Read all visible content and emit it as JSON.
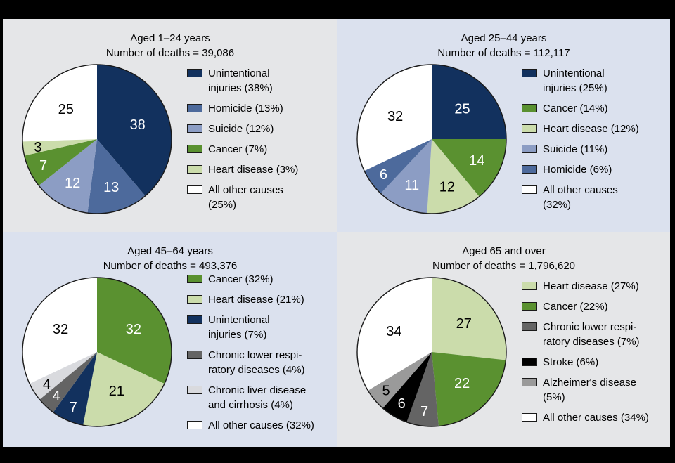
{
  "frame": {
    "border_color": "#000000"
  },
  "palette": {
    "navy": "#12315e",
    "medium_blue": "#4d6a9c",
    "periwinkle": "#8c9dc4",
    "green": "#5a9130",
    "light_green": "#cbdcab",
    "white": "#ffffff",
    "dark_gray": "#646464",
    "light_gray": "#d9dade",
    "medium_gray": "#9a9a9a",
    "black": "#000000",
    "panel_gray": "#e5e6e8",
    "panel_blue": "#dbe1ee",
    "pie_outline": "#1a1a1a",
    "text": "#000000"
  },
  "chart_data": [
    {
      "type": "pie",
      "title": "Aged 1–24 years",
      "subtitle": "Number of deaths = 39,086",
      "panel_background": "gray",
      "legend_position": "right",
      "label_unit": "percent",
      "slices": [
        {
          "label": "Unintentional injuries",
          "pct": 38,
          "value_label": "38",
          "color": "navy",
          "legend_lines": [
            "Unintentional",
            "injuries (38%)"
          ]
        },
        {
          "label": "Homicide",
          "pct": 13,
          "value_label": "13",
          "color": "medium_blue",
          "legend_lines": [
            "Homicide (13%)"
          ]
        },
        {
          "label": "Suicide",
          "pct": 12,
          "value_label": "12",
          "color": "periwinkle",
          "legend_lines": [
            "Suicide (12%)"
          ]
        },
        {
          "label": "Cancer",
          "pct": 7,
          "value_label": "7",
          "color": "green",
          "legend_lines": [
            "Cancer (7%)"
          ]
        },
        {
          "label": "Heart disease",
          "pct": 3,
          "value_label": "3",
          "color": "light_green",
          "legend_lines": [
            "Heart disease (3%)"
          ]
        },
        {
          "label": "All other causes",
          "pct": 25,
          "value_label": "25",
          "color": "white",
          "legend_lines": [
            "All other causes",
            "(25%)"
          ]
        }
      ]
    },
    {
      "type": "pie",
      "title": "Aged 25–44 years",
      "subtitle": "Number of deaths = 112,117",
      "panel_background": "blue",
      "legend_position": "right",
      "label_unit": "percent",
      "slices": [
        {
          "label": "Unintentional injuries",
          "pct": 25,
          "value_label": "25",
          "color": "navy",
          "legend_lines": [
            "Unintentional",
            "injuries (25%)"
          ]
        },
        {
          "label": "Cancer",
          "pct": 14,
          "value_label": "14",
          "color": "green",
          "legend_lines": [
            "Cancer (14%)"
          ]
        },
        {
          "label": "Heart disease",
          "pct": 12,
          "value_label": "12",
          "color": "light_green",
          "legend_lines": [
            "Heart disease (12%)"
          ]
        },
        {
          "label": "Suicide",
          "pct": 11,
          "value_label": "11",
          "color": "periwinkle",
          "legend_lines": [
            "Suicide (11%)"
          ]
        },
        {
          "label": "Homicide",
          "pct": 6,
          "value_label": "6",
          "color": "medium_blue",
          "legend_lines": [
            "Homicide (6%)"
          ]
        },
        {
          "label": "All other causes",
          "pct": 32,
          "value_label": "32",
          "color": "white",
          "legend_lines": [
            "All other causes",
            "(32%)"
          ]
        }
      ]
    },
    {
      "type": "pie",
      "title": "Aged 45–64 years",
      "subtitle": "Number of deaths = 493,376",
      "panel_background": "blue",
      "legend_position": "right",
      "label_unit": "percent",
      "slices": [
        {
          "label": "Cancer",
          "pct": 32,
          "value_label": "32",
          "color": "green",
          "legend_lines": [
            "Cancer (32%)"
          ]
        },
        {
          "label": "Heart disease",
          "pct": 21,
          "value_label": "21",
          "color": "light_green",
          "legend_lines": [
            "Heart disease (21%)"
          ]
        },
        {
          "label": "Unintentional injuries",
          "pct": 7,
          "value_label": "7",
          "color": "navy",
          "legend_lines": [
            "Unintentional",
            "injuries (7%)"
          ]
        },
        {
          "label": "Chronic lower respiratory diseases",
          "pct": 4,
          "value_label": "4",
          "color": "dark_gray",
          "legend_lines": [
            "Chronic lower respi-",
            "ratory diseases (4%)"
          ]
        },
        {
          "label": "Chronic liver disease and cirrhosis",
          "pct": 4,
          "value_label": "4",
          "color": "light_gray",
          "legend_lines": [
            "Chronic liver disease",
            "and cirrhosis (4%)"
          ]
        },
        {
          "label": "All other causes",
          "pct": 32,
          "value_label": "32",
          "color": "white",
          "legend_lines": [
            "All other causes (32%)"
          ]
        }
      ]
    },
    {
      "type": "pie",
      "title": "Aged 65 and over",
      "subtitle": "Number of deaths = 1,796,620",
      "panel_background": "gray",
      "legend_position": "right",
      "label_unit": "percent",
      "slices": [
        {
          "label": "Heart disease",
          "pct": 27,
          "value_label": "27",
          "color": "light_green",
          "legend_lines": [
            "Heart disease (27%)"
          ]
        },
        {
          "label": "Cancer",
          "pct": 22,
          "value_label": "22",
          "color": "green",
          "legend_lines": [
            "Cancer (22%)"
          ]
        },
        {
          "label": "Chronic lower respiratory diseases",
          "pct": 7,
          "value_label": "7",
          "color": "dark_gray",
          "legend_lines": [
            "Chronic lower respi-",
            "ratory diseases (7%)"
          ]
        },
        {
          "label": "Stroke",
          "pct": 6,
          "value_label": "6",
          "color": "black",
          "legend_lines": [
            "Stroke (6%)"
          ]
        },
        {
          "label": "Alzheimer's disease",
          "pct": 5,
          "value_label": "5",
          "color": "medium_gray",
          "legend_lines": [
            "Alzheimer's disease",
            "(5%)"
          ]
        },
        {
          "label": "All other causes",
          "pct": 34,
          "value_label": "34",
          "color": "white",
          "legend_lines": [
            "All other causes (34%)"
          ]
        }
      ]
    }
  ]
}
